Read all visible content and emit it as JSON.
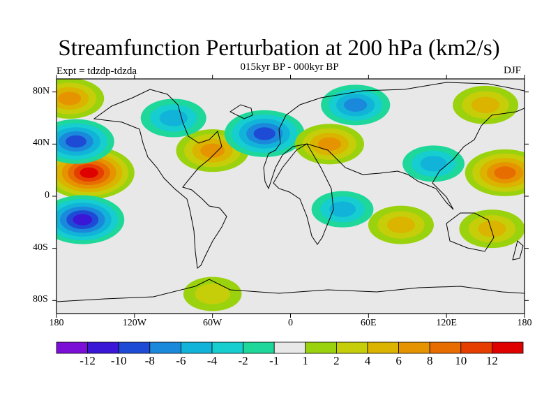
{
  "title": "Streamfunction Perturbation at 200 hPa (km2/s)",
  "subtitle": "015kyr BP - 000kyr BP",
  "left_label": "Expt = tdzdp-tdzda",
  "right_label": "DJF",
  "lat_ticks": [
    "80N",
    "40N",
    "0",
    "40S",
    "80S"
  ],
  "lon_ticks": [
    "180",
    "120W",
    "60W",
    "0",
    "60E",
    "120E",
    "180"
  ],
  "colorbar": {
    "colors": [
      "#7c0fd6",
      "#3a16d6",
      "#1e4bd6",
      "#1a89dc",
      "#12b3d9",
      "#16cdd0",
      "#1ed79a",
      "#e8e8e8",
      "#9bd20e",
      "#c6ce0a",
      "#dbb400",
      "#e59400",
      "#e86d00",
      "#e63e00",
      "#df0000"
    ],
    "labels": [
      "-12",
      "-10",
      "-8",
      "-6",
      "-4",
      "-2",
      "-1",
      "1",
      "2",
      "4",
      "6",
      "8",
      "10",
      "12"
    ]
  },
  "chart_data": {
    "type": "heatmap",
    "title": "Streamfunction Perturbation at 200 hPa (km2/s)",
    "subtitle": "015kyr BP - 000kyr BP",
    "projection": "cylindrical equidistant",
    "lon_range": [
      -180,
      180
    ],
    "lat_range": [
      -90,
      90
    ],
    "units": "km2/s",
    "levels": [
      -12,
      -10,
      -8,
      -6,
      -4,
      -2,
      -1,
      1,
      2,
      4,
      6,
      8,
      10,
      12
    ],
    "features": [
      {
        "lon": -155,
        "lat": 18,
        "value": 12
      },
      {
        "lon": -160,
        "lat": -18,
        "value": -10
      },
      {
        "lon": -165,
        "lat": 42,
        "value": -8
      },
      {
        "lon": -170,
        "lat": 75,
        "value": 6
      },
      {
        "lon": -60,
        "lat": 35,
        "value": 7
      },
      {
        "lon": -20,
        "lat": 48,
        "value": -9
      },
      {
        "lon": -90,
        "lat": 60,
        "value": -5
      },
      {
        "lon": 30,
        "lat": 40,
        "value": 6
      },
      {
        "lon": 50,
        "lat": 70,
        "value": -6
      },
      {
        "lon": 150,
        "lat": 70,
        "value": 5
      },
      {
        "lon": 165,
        "lat": 18,
        "value": 9
      },
      {
        "lon": 110,
        "lat": 25,
        "value": -4
      },
      {
        "lon": 85,
        "lat": -22,
        "value": 5
      },
      {
        "lon": 155,
        "lat": -25,
        "value": 5
      },
      {
        "lon": 40,
        "lat": -10,
        "value": -4
      },
      {
        "lon": -60,
        "lat": -75,
        "value": 3
      }
    ]
  }
}
